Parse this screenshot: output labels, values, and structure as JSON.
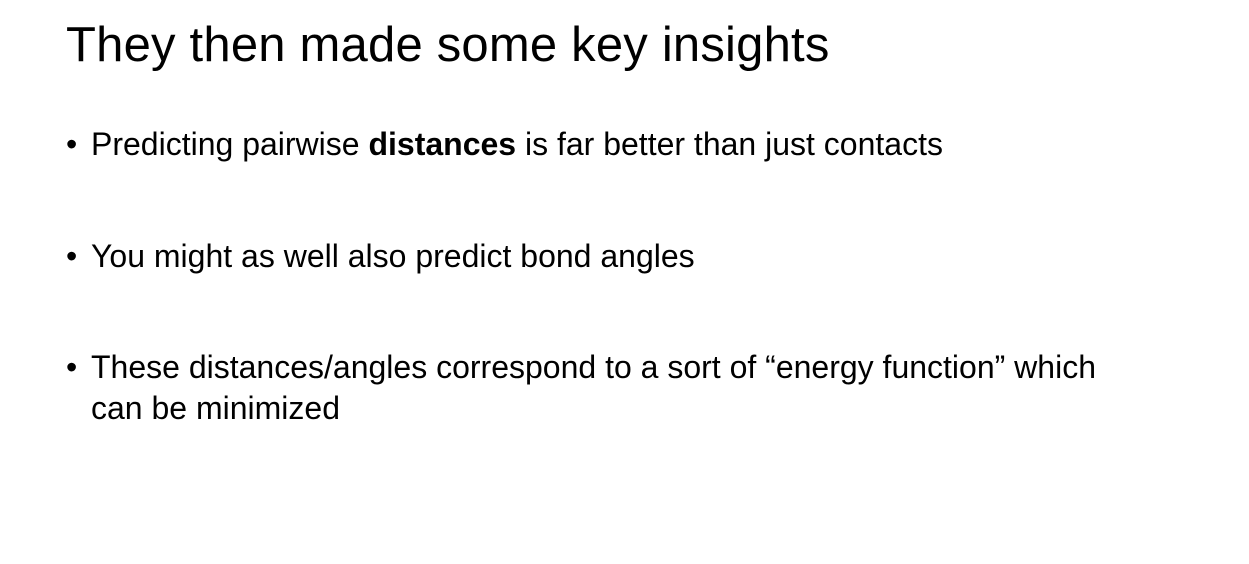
{
  "slide": {
    "title": "They then made some key insights",
    "bullet_symbol": "•",
    "bullets": [
      {
        "before": "Predicting pairwise ",
        "emphasis": "distances",
        "after": " is far better than just contacts"
      },
      {
        "text": "You might as well also predict bond angles"
      },
      {
        "text": "These distances/angles correspond to a sort of “energy function” which can be minimized"
      }
    ]
  }
}
